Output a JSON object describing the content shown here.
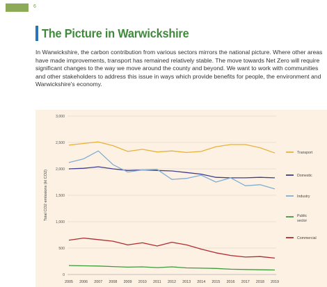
{
  "header": {
    "page_number": "6"
  },
  "heading": {
    "title": "The Picture in Warwickshire"
  },
  "intro": {
    "paragraph": "In Warwickshire, the carbon contribution from various sectors mirrors the national picture. Where other areas have made improvements, transport has remained relatively stable. The move towards Net Zero will require significant changes to the way we move around the county and beyond. We want to work with communities and other stakeholders to address this issue in ways which provide benefits for people, the environment and Warwickshire's economy."
  },
  "chart_data": {
    "type": "line",
    "title": "",
    "xlabel": "",
    "ylabel": "Total CO2 emissions (kt CO2)",
    "x": [
      "2005",
      "2006",
      "2007",
      "2008",
      "2009",
      "2010",
      "2011",
      "2012",
      "2013",
      "2014",
      "2015",
      "2016",
      "2017",
      "2018",
      "2019"
    ],
    "ylim": [
      0,
      3000
    ],
    "yticks": [
      0,
      500,
      1000,
      1500,
      2000,
      2500,
      3000
    ],
    "ytick_labels": [
      "0",
      "500",
      "1,000",
      "1,500",
      "2,000",
      "2,500",
      "3,000"
    ],
    "grid": true,
    "legend_position": "right",
    "series": [
      {
        "name": "Transport",
        "color": "#e8b23a",
        "values": [
          2450,
          2480,
          2510,
          2440,
          2330,
          2370,
          2320,
          2340,
          2310,
          2330,
          2420,
          2460,
          2460,
          2400,
          2300
        ]
      },
      {
        "name": "Domestic",
        "color": "#3d3c8e",
        "values": [
          2000,
          2010,
          2040,
          2000,
          1970,
          1980,
          1970,
          1960,
          1930,
          1900,
          1840,
          1830,
          1830,
          1840,
          1830
        ]
      },
      {
        "name": "Industry",
        "color": "#7faed6",
        "values": [
          2120,
          2190,
          2340,
          2080,
          1940,
          1980,
          1990,
          1800,
          1820,
          1880,
          1750,
          1830,
          1680,
          1700,
          1620
        ]
      },
      {
        "name": "Public sector",
        "color": "#3c9a3c",
        "values": [
          170,
          165,
          160,
          150,
          140,
          145,
          130,
          145,
          125,
          120,
          115,
          100,
          95,
          90,
          85
        ]
      },
      {
        "name": "Commercial",
        "color": "#b22a2e",
        "values": [
          650,
          690,
          660,
          630,
          560,
          600,
          540,
          610,
          560,
          480,
          410,
          360,
          330,
          340,
          310
        ]
      }
    ]
  }
}
